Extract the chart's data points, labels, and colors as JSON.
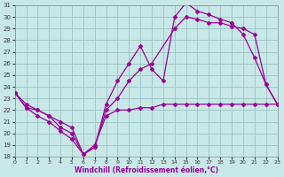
{
  "xlabel": "Windchill (Refroidissement éolien,°C)",
  "background_color": "#c8e8e8",
  "grid_color": "#a0c8c8",
  "line_color": "#990099",
  "xlim": [
    0,
    23
  ],
  "ylim": [
    18,
    31
  ],
  "yticks": [
    18,
    19,
    20,
    21,
    22,
    23,
    24,
    25,
    26,
    27,
    28,
    29,
    30,
    31
  ],
  "xticks": [
    0,
    1,
    2,
    3,
    4,
    5,
    6,
    7,
    8,
    9,
    10,
    11,
    12,
    13,
    14,
    15,
    16,
    17,
    18,
    19,
    20,
    21,
    22,
    23
  ],
  "curve1_x": [
    0,
    1,
    2,
    3,
    4,
    5,
    6,
    7,
    8,
    9,
    10,
    11,
    12,
    13,
    14,
    15,
    16,
    17,
    18,
    19,
    20,
    21,
    22,
    23
  ],
  "curve1_y": [
    23.5,
    22.2,
    21.5,
    21.0,
    20.2,
    19.5,
    18.2,
    19.0,
    21.5,
    22.0,
    22.0,
    22.2,
    22.2,
    22.5,
    22.5,
    22.5,
    22.5,
    22.5,
    22.5,
    22.5,
    22.5,
    22.5,
    22.5,
    22.5
  ],
  "curve2_x": [
    0,
    1,
    2,
    3,
    4,
    5,
    6,
    7,
    8,
    9,
    10,
    11,
    12,
    13,
    14,
    15,
    16,
    17,
    18,
    19,
    20,
    21,
    22,
    23
  ],
  "curve2_y": [
    23.5,
    22.5,
    22.0,
    21.5,
    20.5,
    20.0,
    18.2,
    18.8,
    22.5,
    24.5,
    26.0,
    27.5,
    25.5,
    24.5,
    30.0,
    31.2,
    30.5,
    30.2,
    29.8,
    29.5,
    28.5,
    26.5,
    24.2,
    22.5
  ],
  "curve3_x": [
    0,
    1,
    2,
    3,
    4,
    5,
    6,
    7,
    8,
    9,
    10,
    11,
    12,
    14,
    15,
    16,
    17,
    18,
    19,
    20,
    21,
    22,
    23
  ],
  "curve3_y": [
    23.5,
    22.2,
    22.0,
    21.5,
    21.0,
    20.5,
    18.2,
    18.8,
    22.0,
    23.0,
    24.5,
    25.5,
    26.0,
    29.0,
    30.0,
    29.8,
    29.5,
    29.5,
    29.2,
    29.0,
    28.5,
    24.2,
    22.5
  ]
}
